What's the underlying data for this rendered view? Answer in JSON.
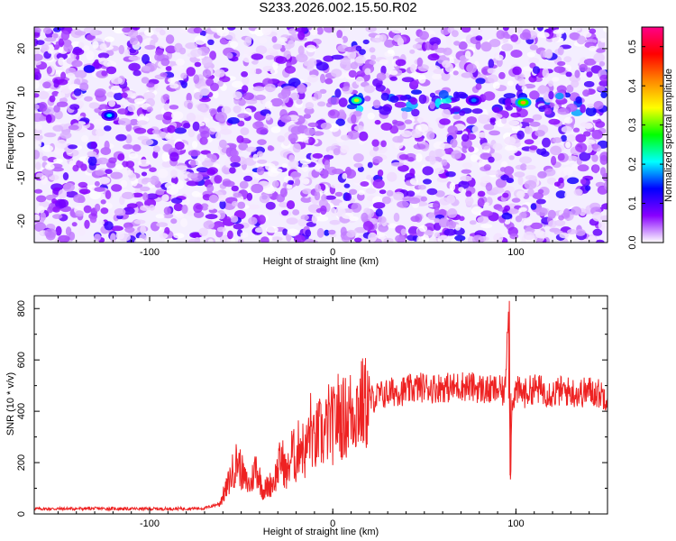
{
  "title": "S233.2026.002.15.50.R02",
  "colors": {
    "line": "#ee2222",
    "frame": "#000000",
    "background": "#ffffff"
  },
  "chart_data": [
    {
      "type": "heatmap",
      "title": "S233.2026.002.15.50.R02",
      "xlabel": "Height of straight line (km)",
      "ylabel": "Frequency (Hz)",
      "xlim": [
        -163,
        150
      ],
      "ylim": [
        -25,
        25
      ],
      "xticks": [
        -100,
        0,
        100
      ],
      "xtick_labels": [
        "-100",
        "0",
        "100"
      ],
      "yticks": [
        -20,
        -10,
        0,
        10,
        20
      ],
      "ytick_labels": [
        "-20",
        "-10",
        "0",
        "10",
        "20"
      ],
      "colorbar": {
        "label": "Normalized spectral amplitude",
        "range": [
          0,
          0.55
        ],
        "ticks": [
          0.0,
          0.1,
          0.2,
          0.3,
          0.4,
          0.5
        ],
        "tick_labels": [
          "0.0",
          "0.1",
          "0.2",
          "0.3",
          "0.4",
          "0.5"
        ],
        "colormap": [
          "#ffffff",
          "#8800ff",
          "#0000ff",
          "#00ffff",
          "#00ff00",
          "#ffff00",
          "#ff8800",
          "#ff0000",
          "#ff0088"
        ]
      },
      "background_level": 0.05,
      "signal_band": {
        "frequency": 7.5,
        "x_start": -10,
        "x_end": 150,
        "level": 0.25
      },
      "peaks": [
        {
          "x": 13,
          "y": 8,
          "value": 0.33
        },
        {
          "x": 104,
          "y": 7.5,
          "value": 0.4
        },
        {
          "x": -122,
          "y": 4.5,
          "value": 0.2
        },
        {
          "x": 77,
          "y": 8,
          "value": 0.17
        }
      ]
    },
    {
      "type": "line",
      "xlabel": "Height of straight line (km)",
      "ylabel": "SNR (10 * v/v)",
      "xlim": [
        -163,
        150
      ],
      "ylim": [
        0,
        850
      ],
      "xticks": [
        -100,
        0,
        100
      ],
      "xtick_labels": [
        "-100",
        "0",
        "100"
      ],
      "yticks": [
        0,
        200,
        400,
        600,
        800
      ],
      "ytick_labels": [
        "0",
        "200",
        "400",
        "600",
        "800"
      ],
      "grid": false,
      "series": [
        {
          "x": [
            -163,
            -150,
            -130,
            -110,
            -90,
            -70,
            -62,
            -58,
            -55,
            -52,
            -48,
            -45,
            -42,
            -38,
            -35,
            -32,
            -28,
            -25,
            -22,
            -20,
            -18,
            -15,
            -12,
            -10,
            -8,
            -5,
            -2,
            0,
            3,
            6,
            10,
            14,
            18,
            22,
            25,
            30,
            35,
            40,
            45,
            50,
            55,
            60,
            65,
            70,
            75,
            80,
            85,
            90,
            94,
            96,
            97,
            98,
            100,
            105,
            110,
            115,
            120,
            125,
            130,
            135,
            140,
            145,
            150
          ],
          "values": [
            20,
            20,
            21,
            20,
            20,
            22,
            40,
            100,
            160,
            210,
            130,
            110,
            190,
            90,
            110,
            130,
            220,
            150,
            250,
            200,
            290,
            230,
            340,
            260,
            320,
            300,
            360,
            340,
            390,
            370,
            400,
            420,
            430,
            450,
            460,
            470,
            480,
            480,
            490,
            495,
            490,
            495,
            490,
            500,
            495,
            490,
            480,
            485,
            470,
            830,
            150,
            450,
            480,
            470,
            490,
            480,
            470,
            480,
            475,
            470,
            480,
            470,
            460
          ]
        }
      ]
    }
  ]
}
